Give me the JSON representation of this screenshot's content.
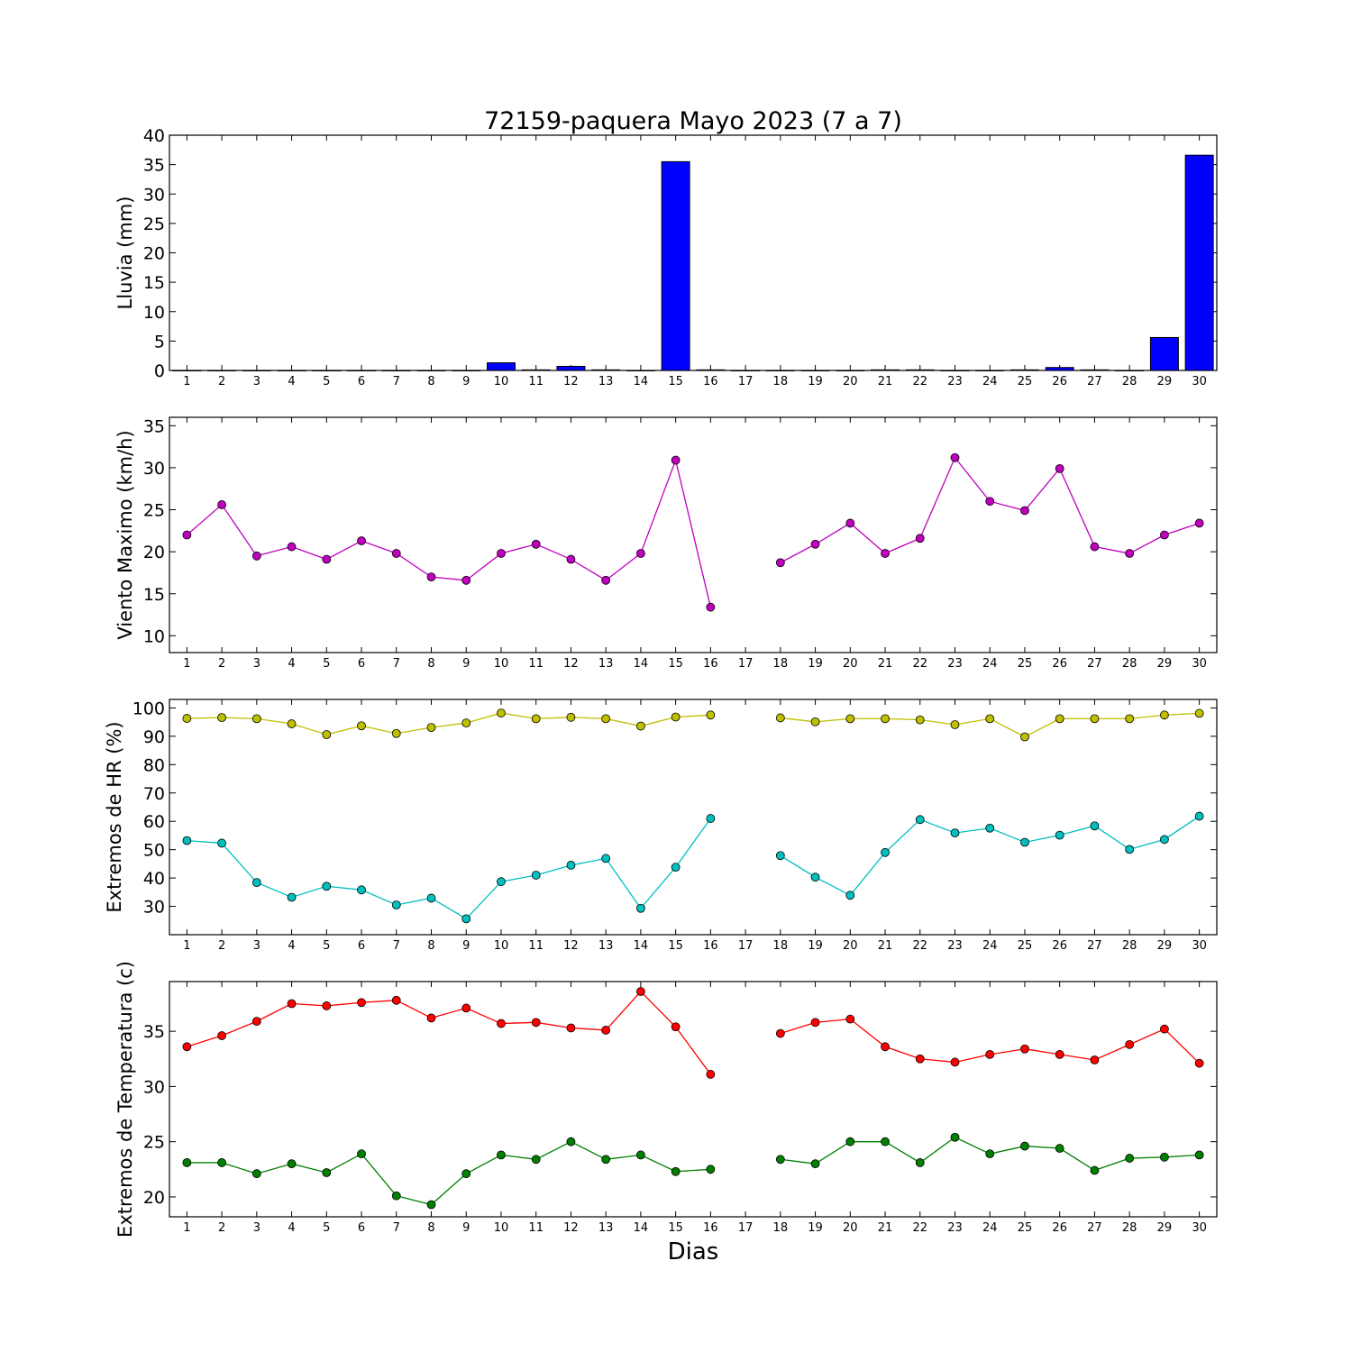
{
  "title": "72159-paquera Mayo 2023  (7 a 7)",
  "xlabel": "Dias",
  "days": [
    1,
    2,
    3,
    4,
    5,
    6,
    7,
    8,
    9,
    10,
    11,
    12,
    13,
    14,
    15,
    16,
    17,
    18,
    19,
    20,
    21,
    22,
    23,
    24,
    25,
    26,
    27,
    28,
    29,
    30
  ],
  "colors": {
    "rain": "#0000ff",
    "wind": "#bf00bf",
    "hr_max": "#bfbf00",
    "hr_min": "#00bfbf",
    "temp_max": "#ff0000",
    "temp_min": "#007f00"
  },
  "chart_data": [
    {
      "type": "bar",
      "ylabel": "Lluvia (mm)",
      "ylim": [
        0,
        40
      ],
      "yticks": [
        0,
        5,
        10,
        15,
        20,
        25,
        30,
        35,
        40
      ],
      "series": [
        {
          "color_key": "rain",
          "values": [
            0,
            0,
            0,
            0,
            0,
            0,
            0,
            0,
            0,
            1.3,
            0.1,
            0.7,
            0.1,
            0,
            35.5,
            0.1,
            0,
            0,
            0,
            0,
            0.1,
            0.1,
            0,
            0,
            0.1,
            0.5,
            0.1,
            0,
            5.6,
            36.6
          ]
        }
      ]
    },
    {
      "type": "line",
      "ylabel": "Viento Maximo (km/h)",
      "ylim": [
        8,
        36
      ],
      "yticks": [
        10,
        15,
        20,
        25,
        30,
        35
      ],
      "series": [
        {
          "color_key": "wind",
          "values": [
            22.0,
            25.6,
            19.5,
            20.6,
            19.1,
            21.3,
            19.8,
            17.0,
            16.6,
            19.8,
            20.9,
            19.1,
            16.6,
            19.8,
            30.9,
            13.4,
            null,
            18.7,
            20.9,
            23.4,
            19.8,
            21.6,
            31.2,
            26.0,
            24.9,
            29.9,
            20.6,
            19.8,
            22.0,
            23.4
          ]
        }
      ]
    },
    {
      "type": "line",
      "ylabel": "Extremos de HR (%)",
      "ylim": [
        20,
        103
      ],
      "yticks": [
        30,
        40,
        50,
        60,
        70,
        80,
        90,
        100
      ],
      "series": [
        {
          "color_key": "hr_max",
          "values": [
            96.3,
            96.6,
            96.2,
            94.4,
            90.6,
            93.7,
            91.0,
            93.1,
            94.7,
            98.2,
            96.2,
            96.7,
            96.2,
            93.6,
            96.8,
            97.5,
            null,
            96.5,
            95.1,
            96.2,
            96.2,
            95.8,
            94.1,
            96.2,
            89.8,
            96.2,
            96.2,
            96.2,
            97.5,
            98.1
          ]
        },
        {
          "color_key": "hr_min",
          "values": [
            53.2,
            52.3,
            38.4,
            33.2,
            37.1,
            35.8,
            30.5,
            32.9,
            25.6,
            38.7,
            41.0,
            44.5,
            46.9,
            29.3,
            43.8,
            61.0,
            null,
            47.9,
            40.3,
            33.9,
            49.0,
            60.6,
            55.9,
            57.6,
            52.6,
            55.1,
            58.4,
            50.1,
            53.6,
            61.8
          ]
        }
      ]
    },
    {
      "type": "line",
      "ylabel": "Extremos de Temperatura (c)",
      "ylim": [
        18.2,
        39.5
      ],
      "yticks": [
        20,
        25,
        30,
        35
      ],
      "series": [
        {
          "color_key": "temp_max",
          "values": [
            33.6,
            34.6,
            35.9,
            37.5,
            37.3,
            37.6,
            37.8,
            36.2,
            37.1,
            35.7,
            35.8,
            35.3,
            35.1,
            38.6,
            35.4,
            31.1,
            null,
            34.8,
            35.8,
            36.1,
            33.6,
            32.5,
            32.2,
            32.9,
            33.4,
            32.9,
            32.4,
            33.8,
            35.2,
            32.1
          ]
        },
        {
          "color_key": "temp_min",
          "values": [
            23.1,
            23.1,
            22.1,
            23.0,
            22.2,
            23.9,
            20.1,
            19.3,
            22.1,
            23.8,
            23.4,
            25.0,
            23.4,
            23.8,
            22.3,
            22.5,
            null,
            23.4,
            23.0,
            25.0,
            25.0,
            23.1,
            25.4,
            23.9,
            24.6,
            24.4,
            22.4,
            23.5,
            23.6,
            23.8
          ]
        }
      ]
    }
  ]
}
